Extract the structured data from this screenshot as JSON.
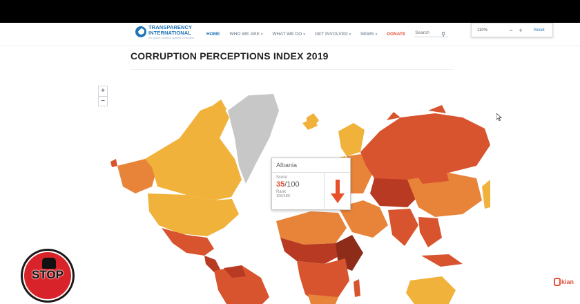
{
  "header": {
    "logo_line1": "TRANSPARENCY",
    "logo_line2": "INTERNATIONAL",
    "logo_tagline": "the global coalition against corruption",
    "nav": [
      {
        "label": "HOME",
        "active": true
      },
      {
        "label": "WHO WE ARE",
        "dropdown": true
      },
      {
        "label": "WHAT WE DO",
        "dropdown": true
      },
      {
        "label": "GET INVOLVED",
        "dropdown": true
      },
      {
        "label": "NEWS",
        "dropdown": true
      },
      {
        "label": "DONATE"
      }
    ],
    "search_placeholder": "Search"
  },
  "zoom_panel": {
    "value": "110%",
    "minus": "−",
    "plus": "+",
    "reset": "Reset"
  },
  "page_title": "CORRUPTION PERCEPTIONS INDEX 2019",
  "map_controls": {
    "zoom_in": "+",
    "zoom_out": "−"
  },
  "tooltip": {
    "country": "Albania",
    "score_label": "Score",
    "score_value": "35",
    "score_max": "/100",
    "rank_label": "Rank",
    "rank_value": "106/180",
    "trend": "down"
  },
  "overlay": {
    "stop_text": "STOP",
    "channel_text": "kian"
  },
  "colors": {
    "clean": "#f0b23a",
    "mid": "#e8843a",
    "corrupt": "#d8542e",
    "very_corrupt": "#b83a22",
    "no_data": "#c7c7c7",
    "accent": "#e0523d",
    "link": "#1f74b8"
  }
}
